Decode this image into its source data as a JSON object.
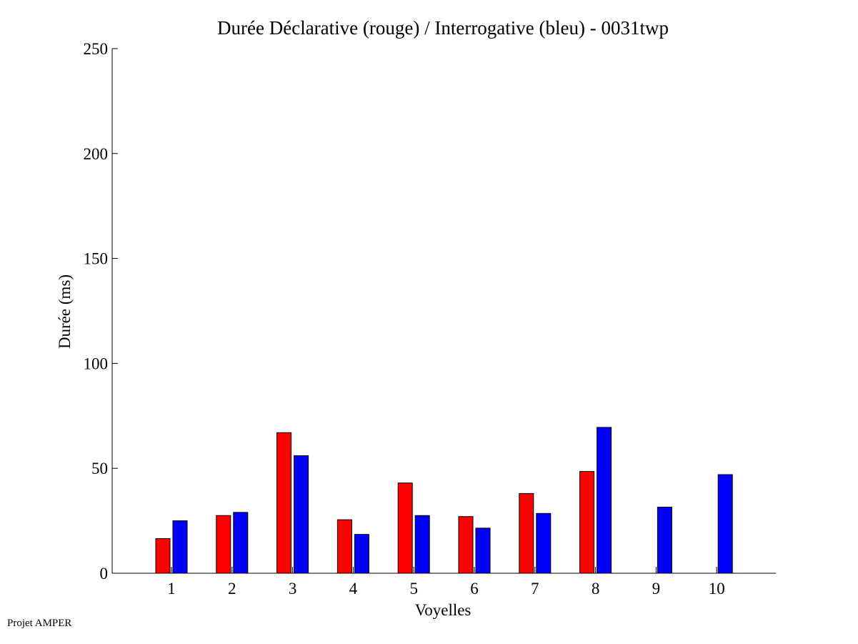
{
  "chart_data": {
    "type": "bar",
    "title": "Durée Déclarative (rouge) / Interrogative (bleu) - 0031twp",
    "xlabel": "Voyelles",
    "ylabel": "Durée (ms)",
    "categories": [
      "1",
      "2",
      "3",
      "4",
      "5",
      "6",
      "7",
      "8",
      "9",
      "10"
    ],
    "ylim": [
      0,
      250
    ],
    "yticks": [
      "0",
      "50",
      "100",
      "150",
      "200",
      "250"
    ],
    "grid": false,
    "series": [
      {
        "color": "#ff0000",
        "values": [
          16.5,
          27.5,
          67,
          25.5,
          43,
          27,
          38,
          48.5,
          null,
          null
        ]
      },
      {
        "color": "#0000ff",
        "values": [
          25,
          29,
          56,
          18.5,
          27.5,
          21.5,
          28.5,
          69.5,
          31.5,
          47
        ]
      }
    ]
  },
  "footer": {
    "text": "Projet AMPER"
  }
}
